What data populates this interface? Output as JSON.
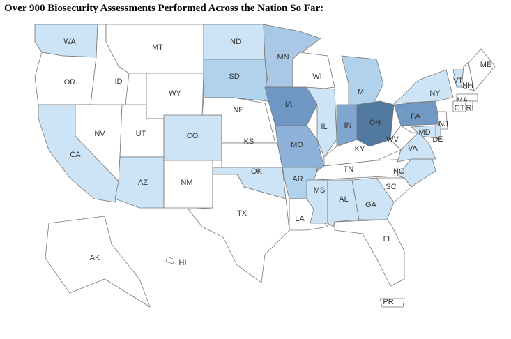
{
  "title": "Over 900 Biosecurity Assessments Performed Across the Nation So Far:",
  "states": [
    {
      "label": "WA",
      "color": "#cce4f5"
    },
    {
      "label": "OR",
      "color": "#ffffff"
    },
    {
      "label": "CA",
      "color": "#cce4f5"
    },
    {
      "label": "NV",
      "color": "#ffffff"
    },
    {
      "label": "ID",
      "color": "#ffffff"
    },
    {
      "label": "MT",
      "color": "#ffffff"
    },
    {
      "label": "WY",
      "color": "#ffffff"
    },
    {
      "label": "UT",
      "color": "#ffffff"
    },
    {
      "label": "CO",
      "color": "#cce4f5"
    },
    {
      "label": "AZ",
      "color": "#cce4f5"
    },
    {
      "label": "NM",
      "color": "#ffffff"
    },
    {
      "label": "ND",
      "color": "#cce4f5"
    },
    {
      "label": "SD",
      "color": "#b0d2ec"
    },
    {
      "label": "NE",
      "color": "#ffffff"
    },
    {
      "label": "KS",
      "color": "#ffffff"
    },
    {
      "label": "OK",
      "color": "#cce4f5"
    },
    {
      "label": "TX",
      "color": "#ffffff"
    },
    {
      "label": "MN",
      "color": "#a9c8e6"
    },
    {
      "label": "IA",
      "color": "#6f97c3"
    },
    {
      "label": "MO",
      "color": "#8db1d8"
    },
    {
      "label": "AR",
      "color": "#b0d2ec"
    },
    {
      "label": "LA",
      "color": "#ffffff"
    },
    {
      "label": "WI",
      "color": "#ffffff"
    },
    {
      "label": "IL",
      "color": "#cce4f5"
    },
    {
      "label": "IN",
      "color": "#7fa6d0"
    },
    {
      "label": "MI",
      "color": "#b0d2ec"
    },
    {
      "label": "OH",
      "color": "#52799f"
    },
    {
      "label": "KY",
      "color": "#ffffff"
    },
    {
      "label": "TN",
      "color": "#ffffff"
    },
    {
      "label": "MS",
      "color": "#cce4f5"
    },
    {
      "label": "AL",
      "color": "#cce4f5"
    },
    {
      "label": "GA",
      "color": "#cce4f5"
    },
    {
      "label": "FL",
      "color": "#ffffff"
    },
    {
      "label": "SC",
      "color": "#ffffff"
    },
    {
      "label": "NC",
      "color": "#cce4f5"
    },
    {
      "label": "VA",
      "color": "#cce4f5"
    },
    {
      "label": "WV",
      "color": "#ffffff"
    },
    {
      "label": "PA",
      "color": "#7199c4"
    },
    {
      "label": "NY",
      "color": "#cce4f5"
    },
    {
      "label": "VT",
      "color": "#cce4f5"
    },
    {
      "label": "NH",
      "color": "#ffffff"
    },
    {
      "label": "ME",
      "color": "#ffffff"
    },
    {
      "label": "MA",
      "color": "#ffffff"
    },
    {
      "label": "CT",
      "color": "#ffffff"
    },
    {
      "label": "RI",
      "color": "#ffffff"
    },
    {
      "label": "NJ",
      "color": "#ffffff"
    },
    {
      "label": "DE",
      "color": "#cce4f5"
    },
    {
      "label": "MD",
      "color": "#cce4f5"
    },
    {
      "label": "AK",
      "color": "#ffffff"
    },
    {
      "label": "HI",
      "color": "#ffffff"
    },
    {
      "label": "PR",
      "color": "#ffffff"
    }
  ]
}
